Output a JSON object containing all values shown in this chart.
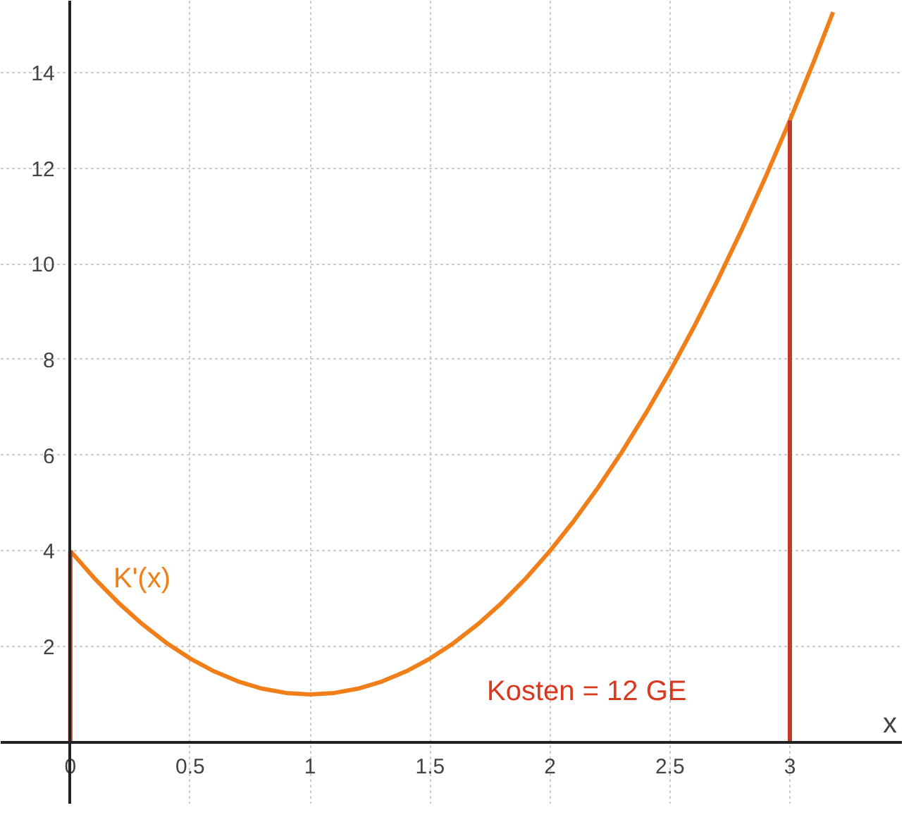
{
  "chart_data": {
    "type": "line",
    "xlabel": "x",
    "series": [
      {
        "color": "#f07f1a",
        "x": [
          0,
          0.1,
          0.2,
          0.3,
          0.4,
          0.5,
          0.6,
          0.7,
          0.8,
          0.9,
          1,
          1.1,
          1.2,
          1.3,
          1.4,
          1.5,
          1.6,
          1.7,
          1.8,
          1.9,
          2,
          2.1,
          2.2,
          2.3,
          2.4,
          2.5,
          2.6,
          2.7,
          2.8,
          2.9,
          3,
          3.1,
          3.18
        ],
        "values": [
          4,
          3.43,
          2.92,
          2.47,
          2.08,
          1.75,
          1.48,
          1.27,
          1.12,
          1.03,
          1,
          1.03,
          1.12,
          1.27,
          1.48,
          1.75,
          2.08,
          2.47,
          2.92,
          3.43,
          4,
          4.63,
          5.32,
          6.07,
          6.88,
          7.75,
          8.68,
          9.67,
          10.72,
          11.83,
          13,
          14.23,
          15.26
        ]
      },
      {
        "color": "#c0392b",
        "x": [
          0,
          0
        ],
        "values": [
          0,
          4
        ]
      },
      {
        "color": "#c0392b",
        "x": [
          3,
          3
        ],
        "values": [
          0,
          13
        ]
      }
    ],
    "annotations": [
      "K'(x)",
      "Kosten = 12 GE"
    ],
    "xlim": [
      -0.29,
      3.47
    ],
    "ylim": [
      -1.3,
      15.5
    ],
    "xticks": [
      0,
      0.5,
      1,
      1.5,
      2,
      2.5,
      3
    ],
    "yticks": [
      2,
      4,
      6,
      8,
      10,
      12,
      14
    ],
    "grid": true,
    "line_style": "solid",
    "marker": "none"
  }
}
